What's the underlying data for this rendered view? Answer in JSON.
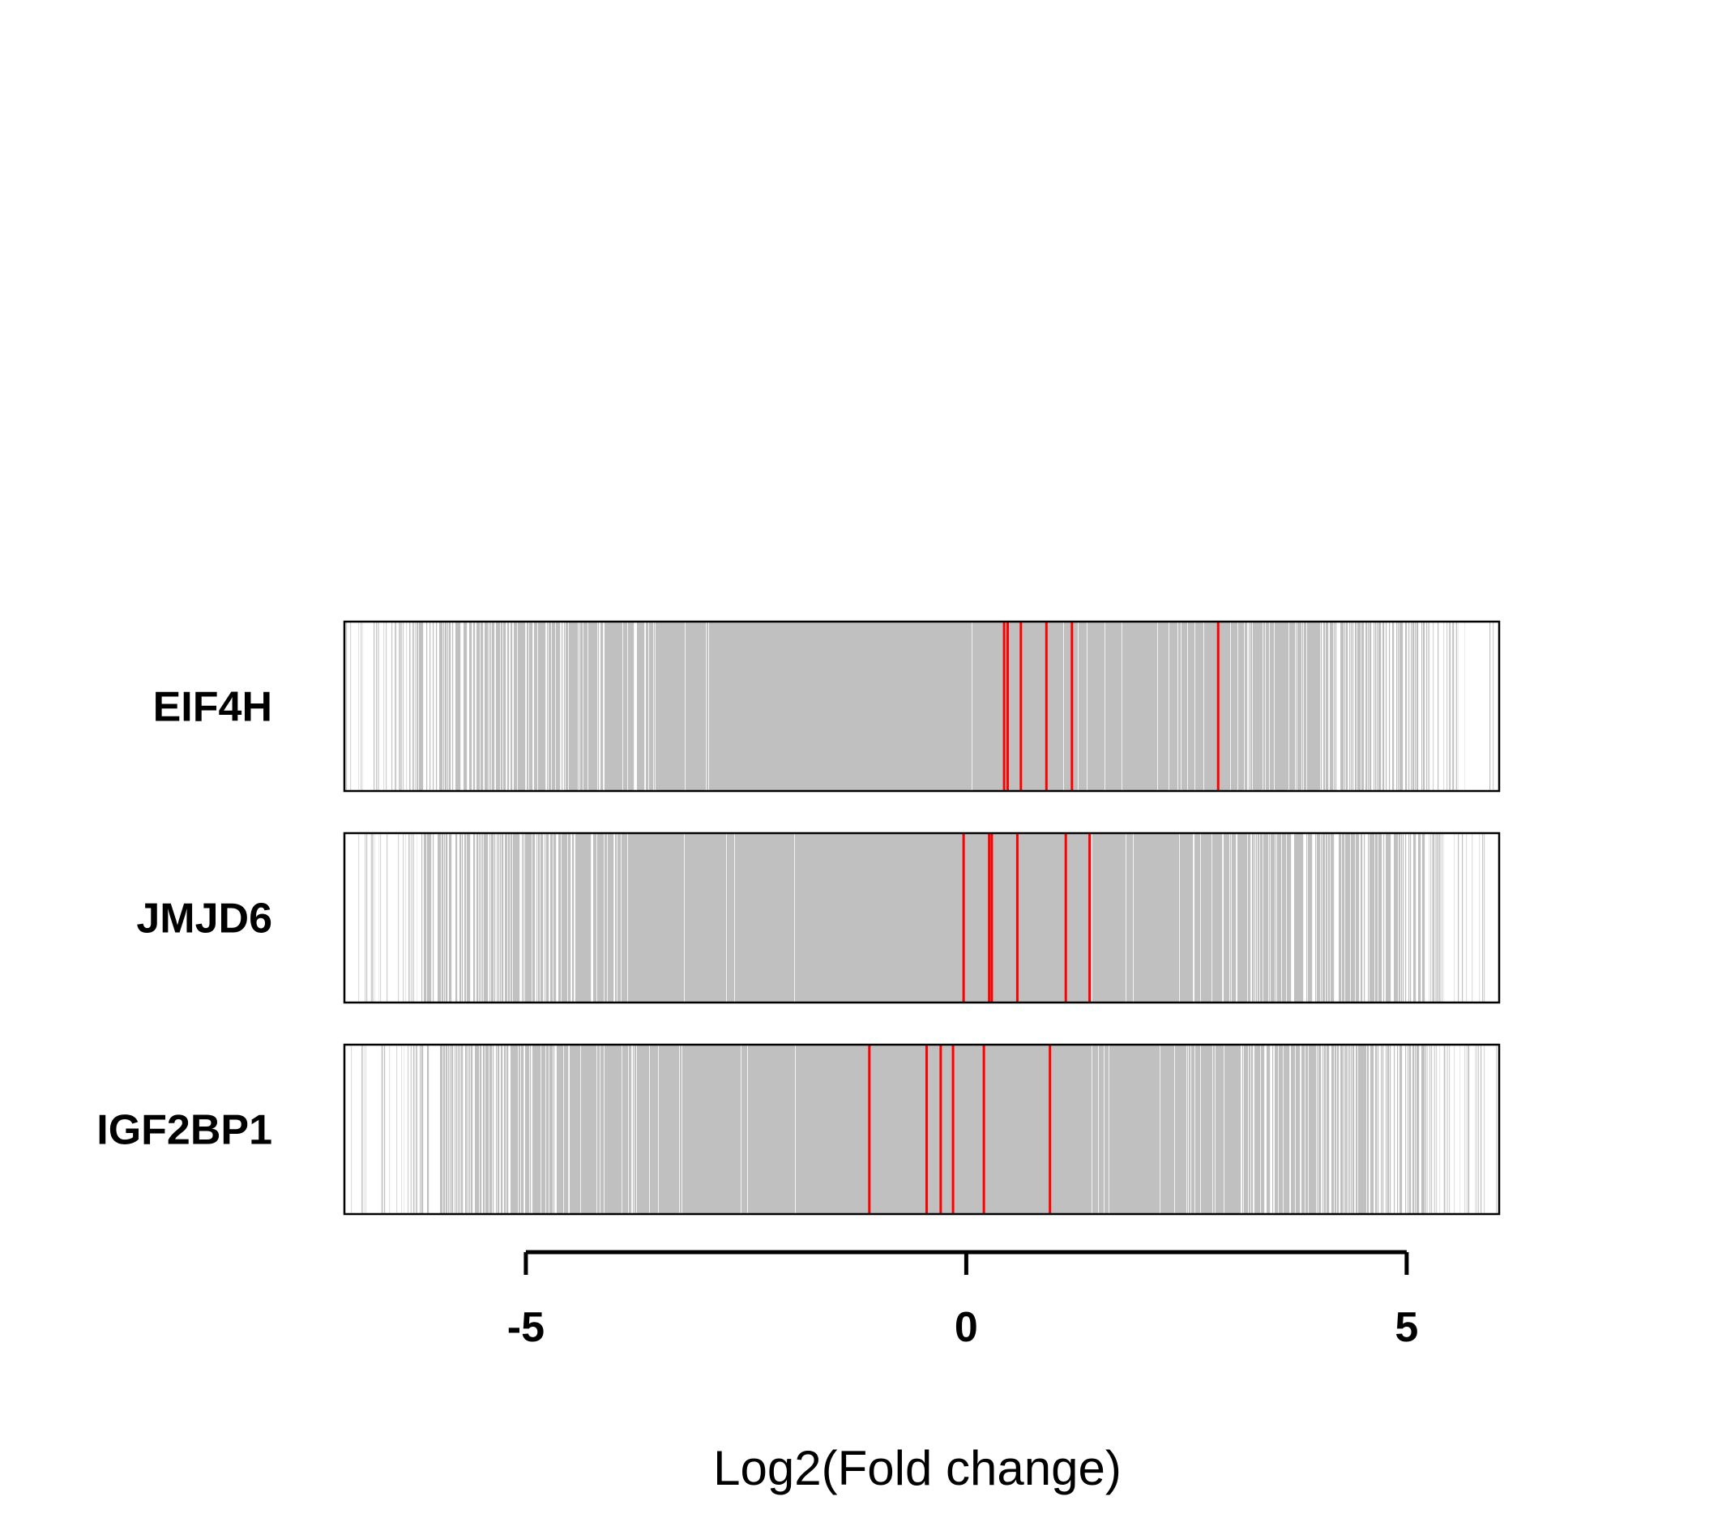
{
  "chart_data": {
    "type": "barcode",
    "title": "",
    "xlabel": "Log2(Fold change)",
    "ylabel": "",
    "xlim": [
      -7.06,
      6.05
    ],
    "x_ticks": [
      -5,
      0,
      5
    ],
    "x_tick_labels": [
      "-5",
      "0",
      "5"
    ],
    "grid": false,
    "background_color": "#c0c0c0",
    "highlight_color": "#ff0000",
    "frame_color": "#000000",
    "rows": [
      {
        "name": "EIF4H",
        "highlight_x": [
          0.43,
          0.47,
          0.62,
          0.91,
          1.2,
          2.86
        ]
      },
      {
        "name": "JMJD6",
        "highlight_x": [
          -0.03,
          0.26,
          0.29,
          0.58,
          1.13,
          1.4
        ]
      },
      {
        "name": "IGF2BP1",
        "highlight_x": [
          -1.1,
          -0.45,
          -0.29,
          -0.15,
          0.2,
          0.95
        ]
      }
    ]
  }
}
